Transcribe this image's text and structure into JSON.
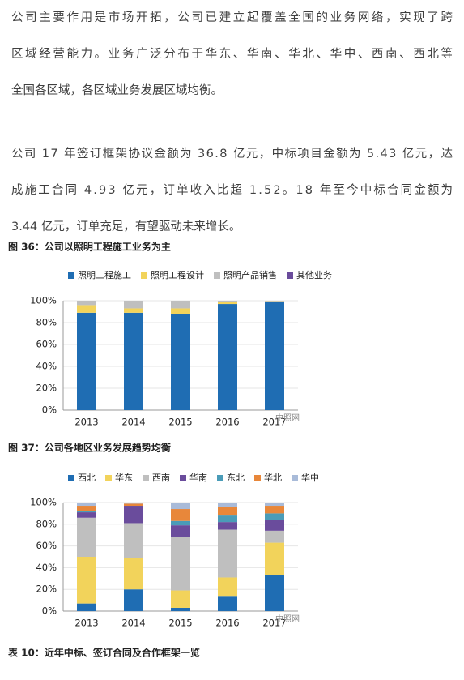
{
  "paragraphs": [
    {
      "lines": [
        "公司主要作用是市场开拓，公司已建立起覆盖全国的业务网络，实现了跨",
        "区域经营能力。业务广泛分布于华东、华南、华北、华中、西南、西北等",
        "全国各区域，各区域业务发展区域均衡。"
      ]
    },
    {
      "lines": [
        "公司 17 年签订框架协议金额为 36.8 亿元，中标项目金额为 5.43 亿元，达",
        "成施工合同  4.93 亿元，订单收入比超 1.52。18 年至今中标合同金额为",
        "3.44 亿元，订单充足，有望驱动未来增长。"
      ]
    }
  ],
  "figures": [
    {
      "caption": "图 36：公司以照明工程施工业务为主",
      "chart_data": {
        "type": "stacked_bar",
        "categories": [
          "2013",
          "2014",
          "2015",
          "2016",
          "2017"
        ],
        "series": [
          {
            "name": "照明工程施工",
            "color": "#1f6db3",
            "values": [
              89,
              89,
              88,
              97,
              99
            ]
          },
          {
            "name": "照明工程设计",
            "color": "#f2d35b",
            "values": [
              7,
              4,
              5,
              2,
              0.5
            ]
          },
          {
            "name": "照明产品销售",
            "color": "#bfbfbf",
            "values": [
              4,
              7,
              7,
              1,
              0.5
            ]
          },
          {
            "name": "其他业务",
            "color": "#6a4c9c",
            "values": [
              0,
              0,
              0,
              0,
              0
            ]
          }
        ],
        "ylim": [
          0,
          100
        ],
        "yticks": [
          {
            "value": 0,
            "label": "0%"
          },
          {
            "value": 20,
            "label": "20%"
          },
          {
            "value": 40,
            "label": "40%"
          },
          {
            "value": 60,
            "label": "60%"
          },
          {
            "value": 80,
            "label": "80%"
          },
          {
            "value": 100,
            "label": "100%"
          }
        ],
        "grid": true,
        "watermark": "中照网"
      }
    },
    {
      "caption": "图 37：公司各地区业务发展趋势均衡",
      "chart_data": {
        "type": "stacked_bar",
        "categories": [
          "2013",
          "2014",
          "2015",
          "2016",
          "2017"
        ],
        "series": [
          {
            "name": "西北",
            "color": "#1f6db3",
            "values": [
              7,
              20,
              3,
              14,
              33
            ]
          },
          {
            "name": "华东",
            "color": "#f2d35b",
            "values": [
              43,
              29,
              16,
              17,
              30
            ]
          },
          {
            "name": "西南",
            "color": "#bfbfbf",
            "values": [
              36,
              32,
              49,
              44,
              11
            ]
          },
          {
            "name": "华南",
            "color": "#6a4c9c",
            "values": [
              5,
              16,
              11,
              7,
              10
            ]
          },
          {
            "name": "东北",
            "color": "#4a9cb8",
            "values": [
              1,
              0,
              4,
              6,
              6
            ]
          },
          {
            "name": "华北",
            "color": "#e8873a",
            "values": [
              5,
              2,
              11,
              8,
              7
            ]
          },
          {
            "name": "华中",
            "color": "#a9bbd9",
            "values": [
              3,
              1,
              6,
              4,
              3
            ]
          }
        ],
        "ylim": [
          0,
          100
        ],
        "yticks": [
          {
            "value": 0,
            "label": "0%"
          },
          {
            "value": 20,
            "label": "20%"
          },
          {
            "value": 40,
            "label": "40%"
          },
          {
            "value": 60,
            "label": "60%"
          },
          {
            "value": 80,
            "label": "80%"
          },
          {
            "value": 100,
            "label": "100%"
          }
        ],
        "grid": true,
        "watermark": "中照网"
      }
    }
  ],
  "table_caption": "表 10：近年中标、签订合同及合作框架一览"
}
